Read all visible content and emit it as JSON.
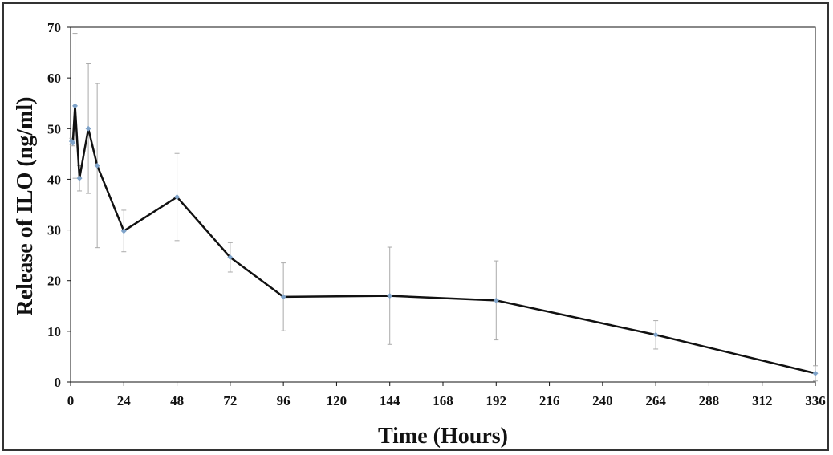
{
  "chart_data": {
    "type": "line",
    "title": "",
    "xlabel": "Time (Hours)",
    "ylabel": "Release of ILO (ng/ml)",
    "xlim": [
      0,
      336
    ],
    "ylim": [
      0,
      70
    ],
    "xticks": [
      0,
      24,
      48,
      72,
      96,
      120,
      144,
      168,
      192,
      216,
      240,
      264,
      288,
      312,
      336
    ],
    "yticks": [
      0,
      10,
      20,
      30,
      40,
      50,
      60,
      70
    ],
    "grid": false,
    "legend": "none",
    "series": [
      {
        "x": [
          0.5,
          1,
          2,
          4,
          8,
          12,
          24,
          48,
          72,
          96,
          144,
          192,
          264,
          336
        ],
        "y": [
          47.5,
          47.2,
          54.5,
          40.2,
          50.0,
          42.7,
          29.8,
          36.5,
          24.6,
          16.8,
          17.0,
          16.1,
          9.3,
          1.7
        ],
        "error": [
          0.6,
          0.6,
          14.3,
          2.5,
          12.8,
          16.2,
          4.1,
          8.6,
          2.9,
          6.7,
          9.6,
          7.8,
          2.8,
          1.5
        ]
      }
    ],
    "colors": {
      "line": "#111111",
      "marker": "#7fa3c9",
      "error_bar": "#aaaaaa",
      "axis": "#111111"
    }
  }
}
